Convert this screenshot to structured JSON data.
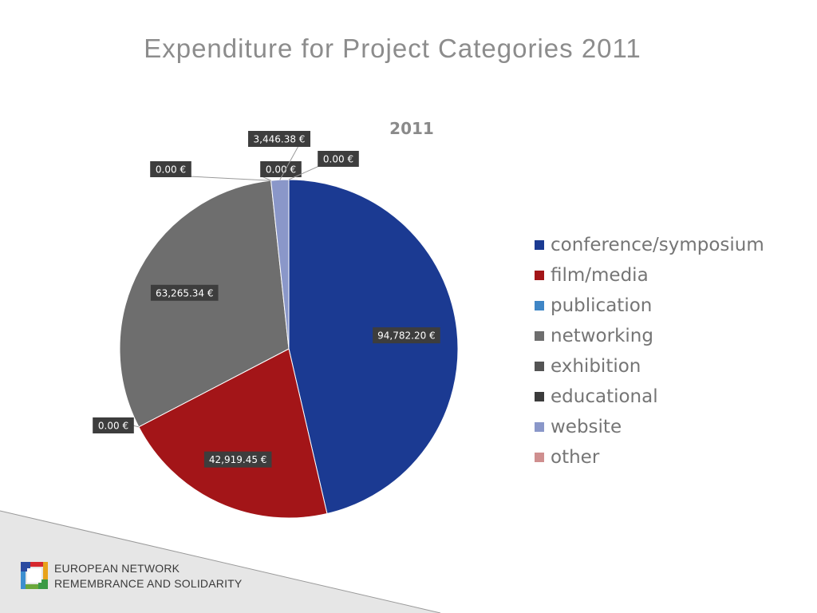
{
  "slide_title": "Expenditure for Project Categories 2011",
  "chart_data": {
    "type": "pie",
    "title": "2011",
    "categories": [
      "conference/symposium",
      "film/media",
      "publication",
      "networking",
      "exhibition",
      "educational",
      "website",
      "other"
    ],
    "values": [
      94782.2,
      42919.45,
      0.0,
      63265.34,
      0.0,
      0.0,
      3446.38,
      0.0
    ],
    "data_labels": [
      "94,782.20 €",
      "42,919.45 €",
      "0.00 €",
      "63,265.34 €",
      "0.00 €",
      "0.00 €",
      "3,446.38 €",
      "0.00 €"
    ],
    "colors": [
      "#1b3a92",
      "#a31518",
      "#3f86c6",
      "#6e6e6e",
      "#545454",
      "#3b3b3b",
      "#8a97c9",
      "#cf8f8f"
    ],
    "legend": "right"
  },
  "footer": {
    "org_line1": "EUROPEAN NETWORK",
    "org_line2": "REMEMBRANCE AND SOLIDARITY"
  }
}
